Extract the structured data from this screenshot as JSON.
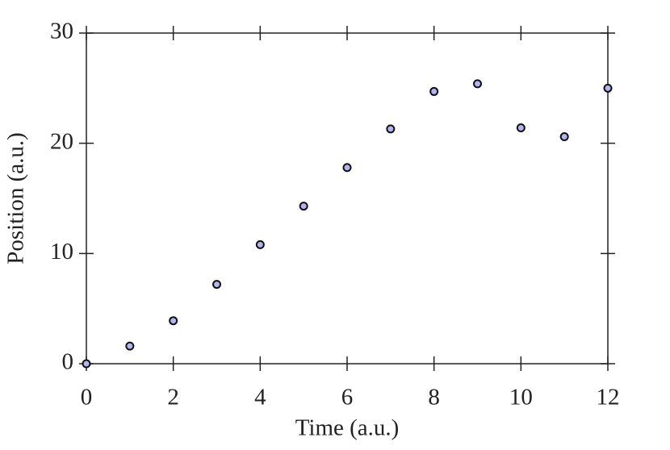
{
  "chart_data": {
    "type": "scatter",
    "x_label": "Time (a.u.)",
    "y_label": "Position (a.u.)",
    "series": [
      {
        "color": "#b4b4f0",
        "x": [
          0,
          1,
          2,
          3,
          4,
          5,
          6,
          7,
          8,
          9,
          10,
          11,
          12
        ],
        "values": [
          0,
          1.6,
          3.9,
          7.2,
          10.8,
          14.3,
          17.8,
          21.3,
          24.7,
          25.4,
          21.4,
          20.6,
          25.0
        ]
      }
    ],
    "xlim": [
      0,
      12
    ],
    "xticks": [
      0,
      2,
      4,
      6,
      8,
      10,
      12
    ],
    "ylim": [
      0,
      30
    ],
    "yticks": [
      0,
      10,
      20,
      30
    ]
  }
}
